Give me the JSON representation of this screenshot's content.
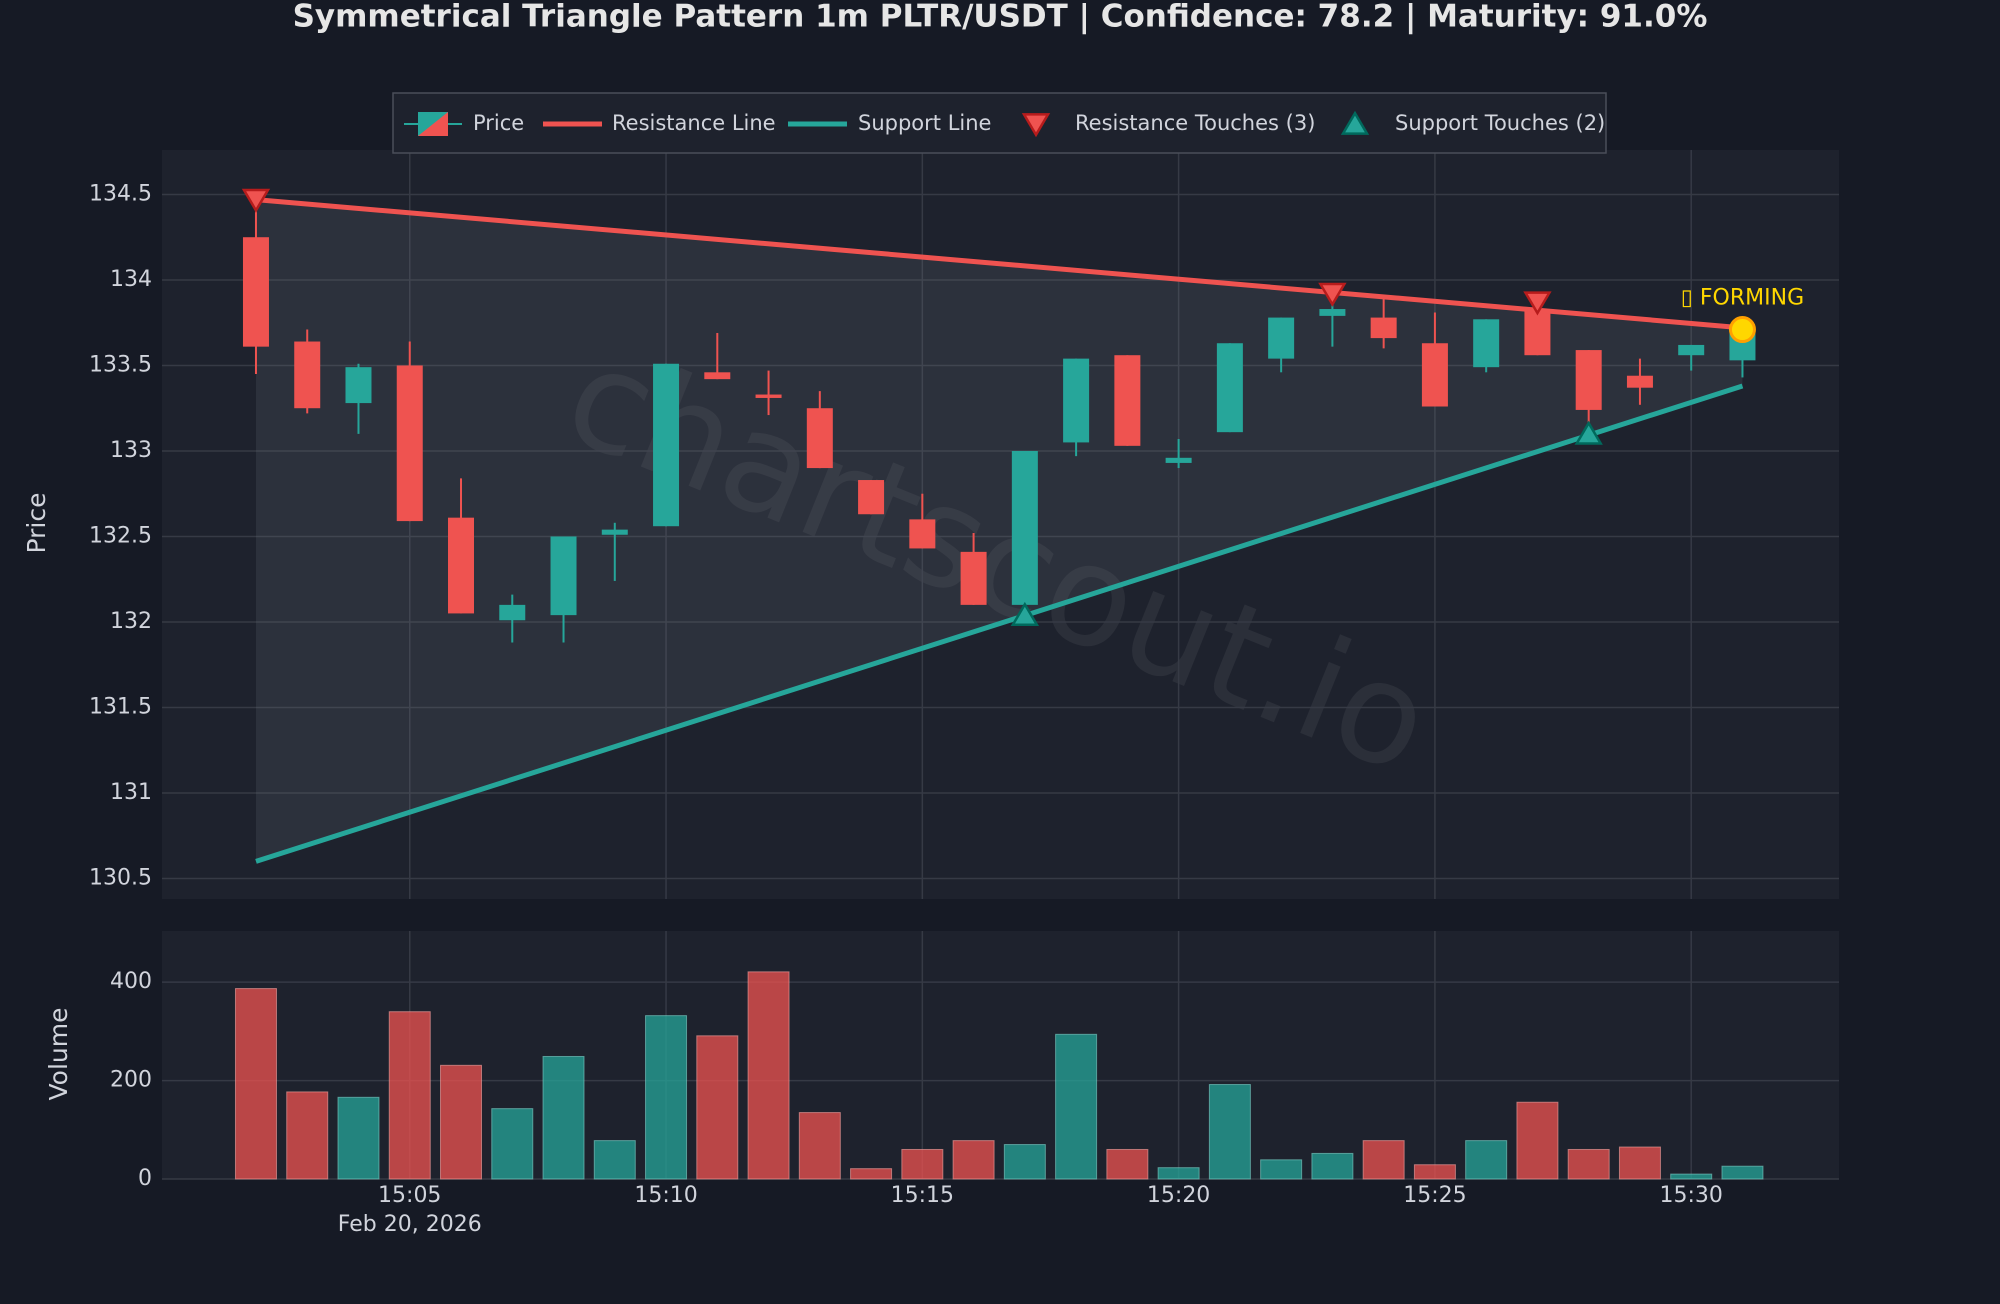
{
  "chart_data": [
    {
      "type": "candlestick",
      "title": "Symmetrical Triangle Pattern 1m PLTR/USDT | Confidence: 78.2 | Maturity: 91.0%",
      "x": [
        "15:02",
        "15:03",
        "15:04",
        "15:05",
        "15:06",
        "15:07",
        "15:08",
        "15:09",
        "15:10",
        "15:11",
        "15:12",
        "15:13",
        "15:14",
        "15:15",
        "15:16",
        "15:17",
        "15:18",
        "15:19",
        "15:20",
        "15:21",
        "15:22",
        "15:23",
        "15:24",
        "15:25",
        "15:26",
        "15:27",
        "15:28",
        "15:29",
        "15:30",
        "15:31"
      ],
      "open": [
        134.25,
        133.64,
        133.28,
        133.5,
        132.61,
        132.01,
        132.04,
        132.51,
        132.56,
        133.46,
        133.33,
        133.25,
        132.83,
        132.6,
        132.41,
        132.1,
        133.05,
        133.56,
        132.93,
        133.11,
        133.54,
        133.79,
        133.78,
        133.63,
        133.49,
        133.82,
        133.59,
        133.44,
        133.56,
        133.53
      ],
      "high": [
        134.47,
        133.71,
        133.51,
        133.64,
        132.84,
        132.16,
        132.5,
        132.58,
        133.51,
        133.69,
        133.47,
        133.35,
        132.83,
        132.75,
        132.52,
        133.0,
        133.54,
        133.56,
        133.07,
        133.63,
        133.78,
        133.92,
        133.89,
        133.81,
        133.77,
        133.88,
        133.59,
        133.54,
        133.62,
        133.74
      ],
      "low": [
        133.45,
        133.22,
        133.1,
        132.59,
        132.05,
        131.88,
        131.88,
        132.24,
        132.56,
        133.42,
        133.21,
        132.9,
        132.63,
        132.43,
        132.1,
        132.04,
        132.97,
        133.03,
        132.9,
        133.11,
        133.46,
        133.61,
        133.6,
        133.26,
        133.46,
        133.56,
        133.12,
        133.27,
        133.47,
        133.43
      ],
      "close": [
        133.61,
        133.25,
        133.49,
        132.59,
        132.05,
        132.1,
        132.5,
        132.54,
        133.51,
        133.42,
        133.31,
        132.9,
        132.63,
        132.43,
        132.1,
        133.0,
        133.54,
        133.03,
        132.96,
        133.63,
        133.78,
        133.83,
        133.66,
        133.26,
        133.77,
        133.56,
        133.24,
        133.37,
        133.62,
        133.69
      ],
      "name": "Price",
      "up_color": "#26a69a",
      "down_color": "#ef5350",
      "ylabel": "Price",
      "xlim": [
        "15:00:10",
        "15:32:53"
      ],
      "ylim": [
        130.38,
        134.76
      ],
      "yticks": [
        130.5,
        131,
        131.5,
        132,
        132.5,
        133,
        133.5,
        134,
        134.5
      ],
      "grid": true,
      "lines": [
        {
          "name": "Resistance Line",
          "color": "#ef5350",
          "x": [
            "15:02",
            "15:31"
          ],
          "values": [
            134.47,
            133.72
          ]
        },
        {
          "name": "Support Line",
          "color": "#26a69a",
          "x": [
            "15:02",
            "15:31"
          ],
          "values": [
            130.6,
            133.38
          ]
        }
      ],
      "markers": [
        {
          "name": "Resistance Touches (3)",
          "shape": "triangle-down",
          "color": "#ef5350",
          "x": [
            "15:02",
            "15:23",
            "15:27"
          ],
          "values": [
            134.47,
            133.92,
            133.87
          ]
        },
        {
          "name": "Support Touches (2)",
          "shape": "triangle-up",
          "color": "#26a69a",
          "x": [
            "15:17",
            "15:28"
          ],
          "values": [
            132.04,
            133.1
          ]
        }
      ],
      "annotation": {
        "text": "▯ FORMING",
        "x": "15:31",
        "value": 133.71,
        "color": "#ffd700"
      },
      "watermark": "chartscout.io"
    },
    {
      "type": "bar",
      "x": [
        "15:02",
        "15:03",
        "15:04",
        "15:05",
        "15:06",
        "15:07",
        "15:08",
        "15:09",
        "15:10",
        "15:11",
        "15:12",
        "15:13",
        "15:14",
        "15:15",
        "15:16",
        "15:17",
        "15:18",
        "15:19",
        "15:20",
        "15:21",
        "15:22",
        "15:23",
        "15:24",
        "15:25",
        "15:26",
        "15:27",
        "15:28",
        "15:29",
        "15:30",
        "15:31"
      ],
      "values": [
        387,
        177,
        166,
        340,
        231,
        143,
        249,
        78,
        332,
        291,
        421,
        135,
        21,
        60,
        78,
        70,
        294,
        60,
        23,
        192,
        39,
        52,
        78,
        29,
        78,
        156,
        60,
        65,
        10,
        26
      ],
      "ylabel": "Volume",
      "xlim": [
        "15:00:10",
        "15:32:53"
      ],
      "ylim": [
        0,
        504
      ],
      "yticks": [
        0,
        200,
        400
      ],
      "xticks": [
        "15:05",
        "15:10",
        "15:15",
        "15:20",
        "15:25",
        "15:30"
      ],
      "x_date_label": "Feb 20, 2026",
      "grid": true
    }
  ]
}
